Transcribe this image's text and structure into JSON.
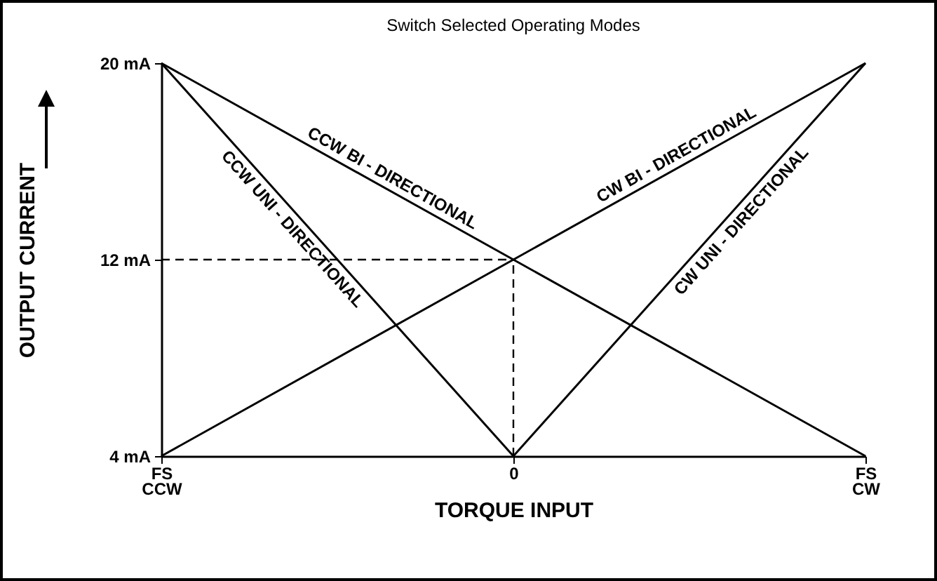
{
  "chart_data": {
    "type": "line",
    "title": "Switch Selected Operating Modes",
    "xlabel": "TORQUE INPUT",
    "ylabel": "OUTPUT CURRENT",
    "categories": [
      "FS\nCCW",
      "0",
      "FS\nCW"
    ],
    "ylim": [
      4,
      20
    ],
    "yticks": [
      {
        "value": 4,
        "label": "4 mA"
      },
      {
        "value": 12,
        "label": "12 mA"
      },
      {
        "value": 20,
        "label": "20 mA"
      }
    ],
    "grid": false,
    "marker": "none",
    "line_style": "solid",
    "series": [
      {
        "name": "CCW BI - DIRECTIONAL",
        "color": "#000000",
        "values": [
          20,
          12,
          4
        ]
      },
      {
        "name": "CW BI - DIRECTIONAL",
        "color": "#000000",
        "values": [
          4,
          12,
          20
        ]
      },
      {
        "name": "CCW UNI - DIRECTIONAL",
        "color": "#000000",
        "values": [
          20,
          4,
          null
        ]
      },
      {
        "name": "CW UNI - DIRECTIONAL",
        "color": "#000000",
        "values": [
          null,
          4,
          20
        ]
      }
    ],
    "ref_lines": [
      {
        "axis": "y",
        "value": 12,
        "line_style": "dashed"
      },
      {
        "axis": "x",
        "value": "0",
        "line_style": "dashed"
      }
    ]
  }
}
